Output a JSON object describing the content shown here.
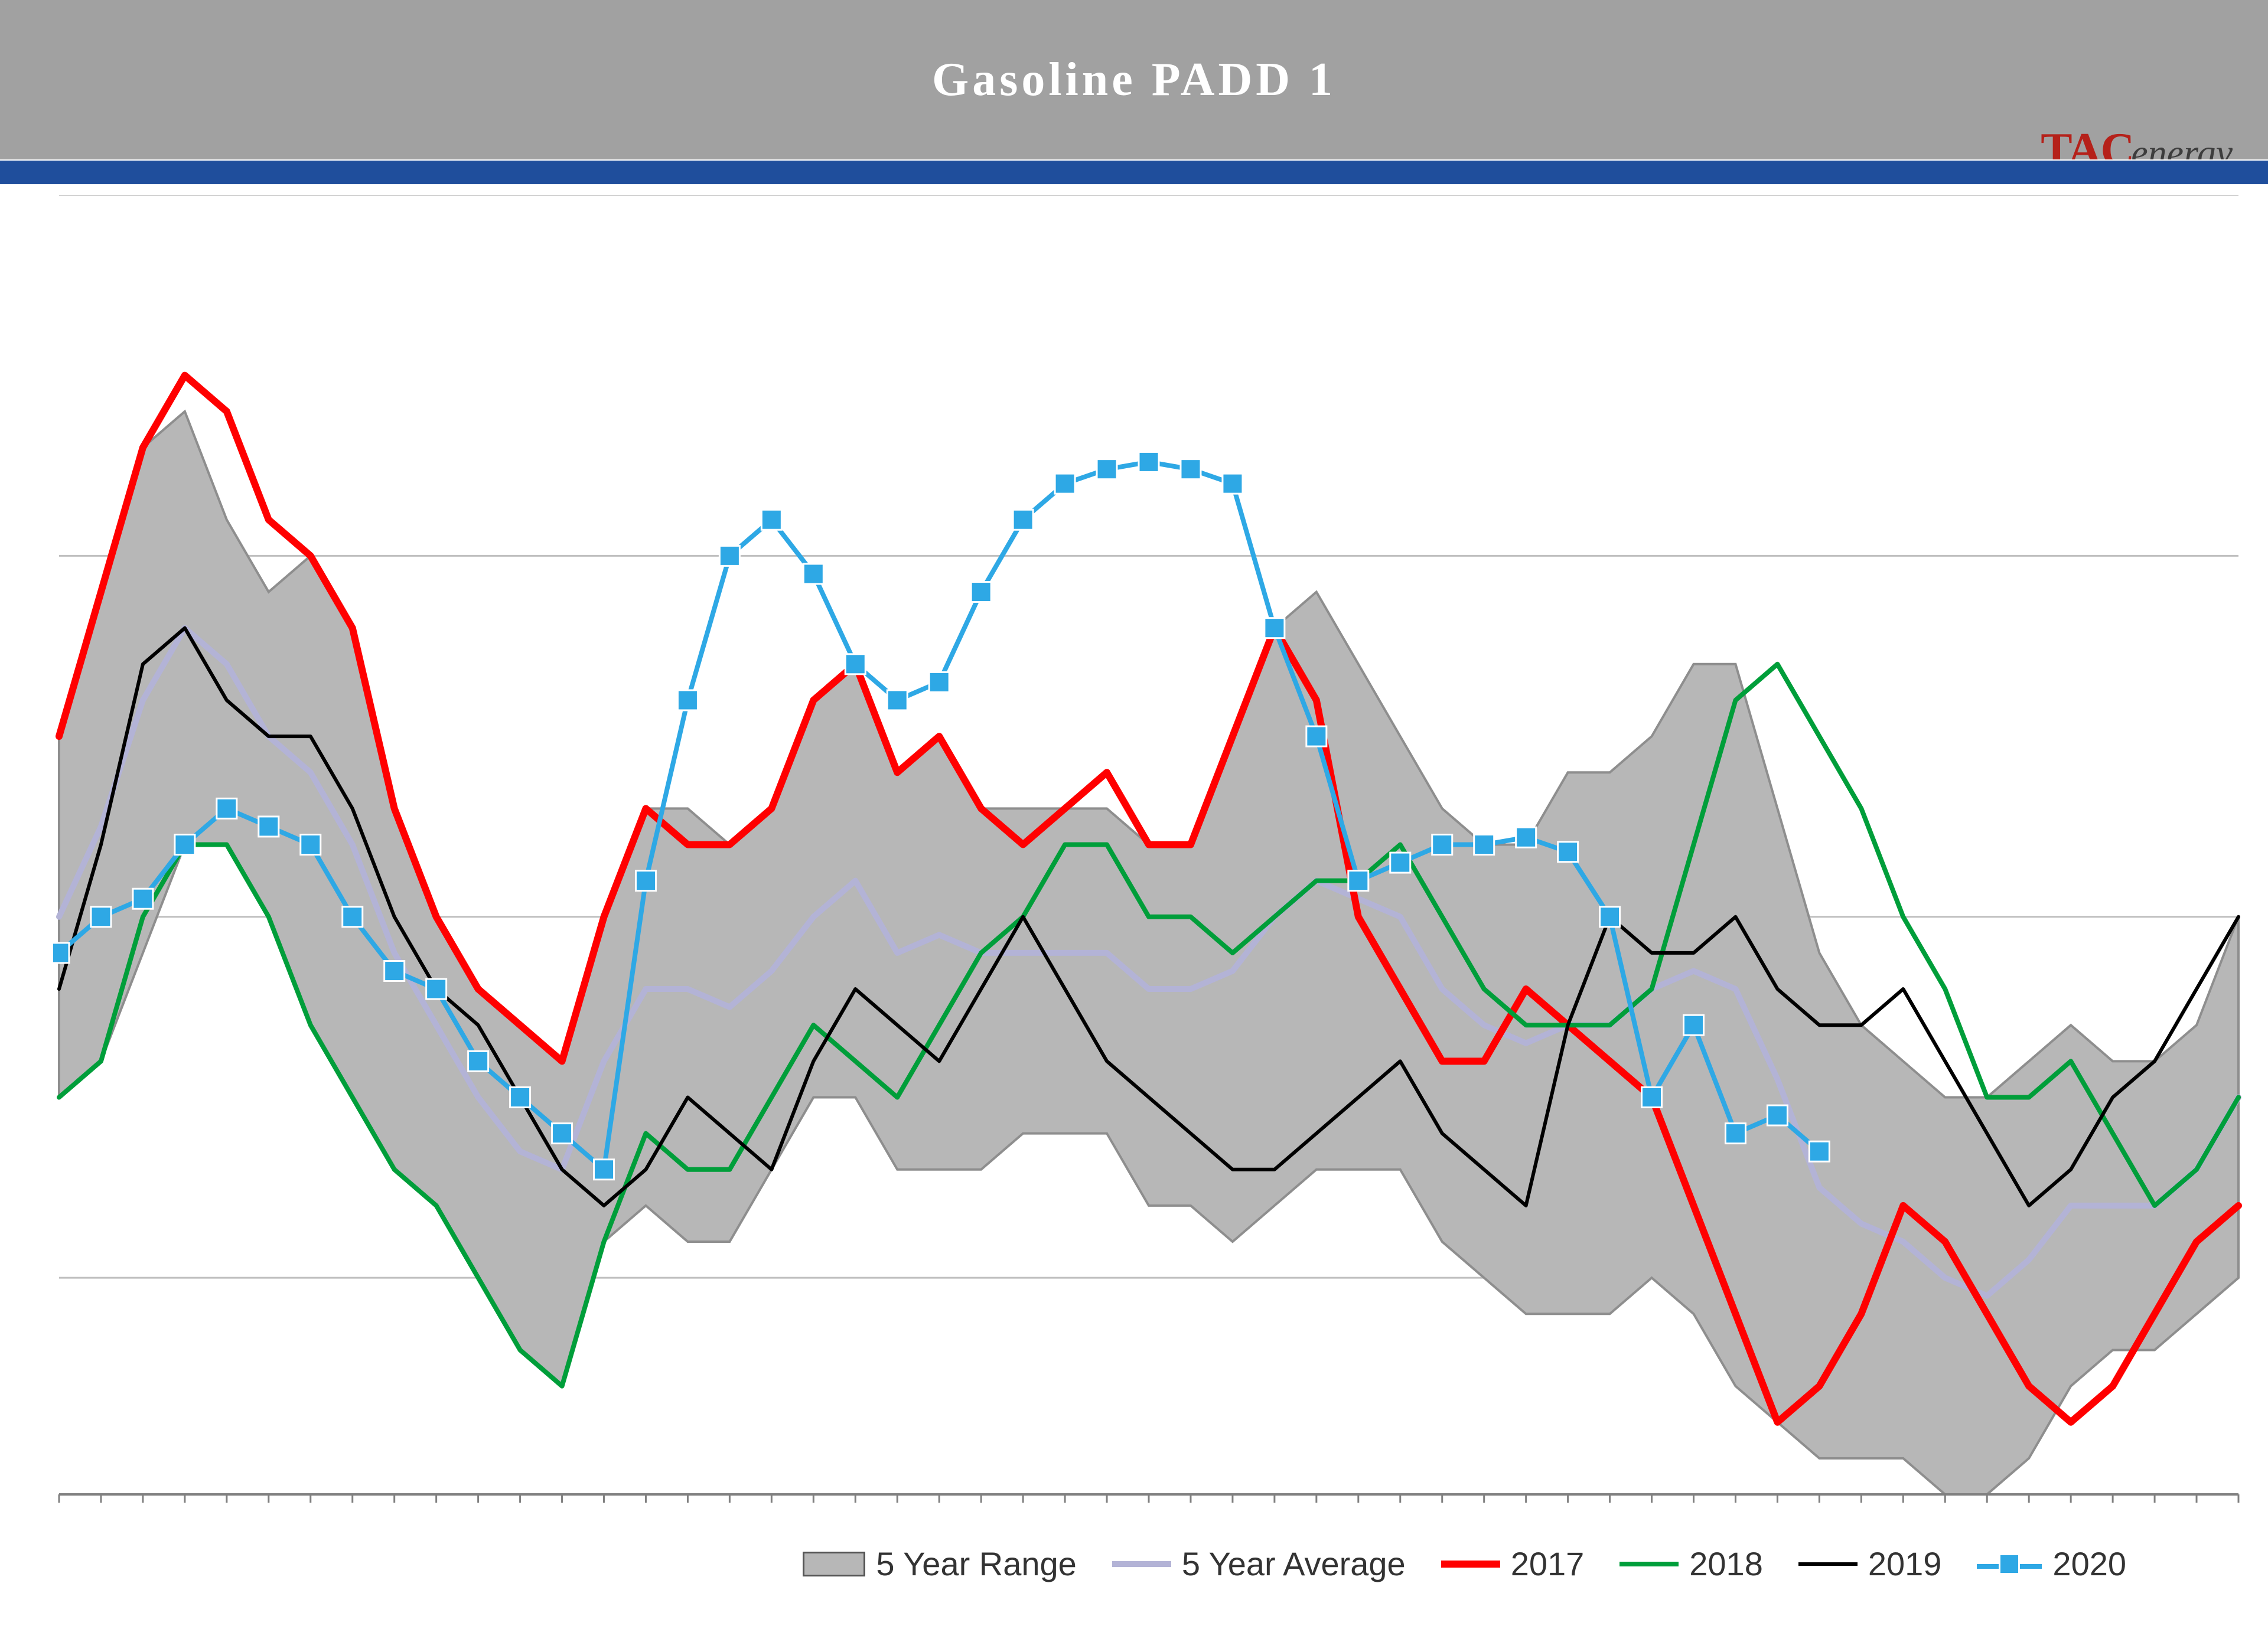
{
  "title": "Gasoline  PADD  1",
  "title_color": "#ffffff",
  "title_bar_color": "#a1a1a1",
  "blue_band_color": "#1f4e9c",
  "logo": {
    "tac": "TAC",
    "energy": "energy",
    "tac_color": "#b5211a",
    "energy_color": "#3d3d3d"
  },
  "chart": {
    "type": "line",
    "n_points": 53,
    "ylim": [
      44,
      80
    ],
    "gridlines_y": [
      50,
      60,
      70,
      80
    ],
    "background_color": "#ffffff",
    "grid_color": "#bfbfbf",
    "axis_color": "#808080",
    "range_fill": "#b7b7b7",
    "range_border": "#8e8e8e",
    "series": {
      "range_high": {
        "label": "5 Year Range",
        "color_fill": "#b7b7b7",
        "color_edge": "#8e8e8e",
        "values": [
          65,
          69,
          73,
          74,
          71,
          69,
          70,
          68,
          63,
          60,
          58,
          57,
          56,
          60,
          63,
          63,
          62,
          63,
          66,
          67,
          64,
          65,
          63,
          63,
          63,
          63,
          62,
          62,
          65,
          68,
          69,
          67,
          65,
          63,
          62,
          62,
          64,
          64,
          65,
          67,
          67,
          63,
          59,
          57,
          56,
          55,
          55,
          56,
          57,
          56,
          56,
          57,
          60
        ]
      },
      "range_low": {
        "values": [
          55,
          56,
          59,
          62,
          62,
          60,
          57,
          55,
          53,
          52,
          50,
          48,
          47,
          51,
          52,
          51,
          51,
          53,
          55,
          55,
          53,
          53,
          53,
          54,
          54,
          54,
          52,
          52,
          51,
          52,
          53,
          53,
          53,
          51,
          50,
          49,
          49,
          49,
          50,
          49,
          47,
          46,
          45,
          45,
          45,
          44,
          44,
          45,
          47,
          48,
          48,
          49,
          50
        ]
      },
      "avg": {
        "label": "5 Year Average",
        "color": "#b3b3d6",
        "line_width": 10,
        "values": [
          60,
          62.5,
          66,
          68,
          67,
          65,
          64,
          62,
          59,
          57,
          55,
          53.5,
          53,
          56,
          58,
          58,
          57.5,
          58.5,
          60,
          61,
          59,
          59.5,
          59,
          59,
          59,
          59,
          58,
          58,
          58.5,
          60,
          61,
          60.5,
          60,
          58,
          57,
          56.5,
          57,
          57,
          58,
          58.5,
          58,
          55.5,
          52.5,
          51.5,
          51,
          50,
          49.5,
          50.5,
          52,
          52,
          52,
          53,
          55
        ]
      },
      "y2017": {
        "label": "2017",
        "color": "#ff0000",
        "line_width": 12,
        "values": [
          65,
          69,
          73,
          75,
          74,
          71,
          70,
          68,
          63,
          60,
          58,
          57,
          56,
          60,
          63,
          62,
          62,
          63,
          66,
          67,
          64,
          65,
          63,
          62,
          63,
          64,
          62,
          62,
          65,
          68,
          66,
          60,
          58,
          56,
          56,
          58,
          57,
          56,
          55,
          52,
          49,
          46,
          47,
          49,
          52,
          51,
          49,
          47,
          46,
          47,
          49,
          51,
          52
        ]
      },
      "y2018": {
        "label": "2018",
        "color": "#009e3a",
        "line_width": 8,
        "values": [
          55,
          56,
          60,
          62,
          62,
          60,
          57,
          55,
          53,
          52,
          50,
          48,
          47,
          51,
          54,
          53,
          53,
          55,
          57,
          56,
          55,
          57,
          59,
          60,
          62,
          62,
          60,
          60,
          59,
          60,
          61,
          61,
          62,
          60,
          58,
          57,
          57,
          57,
          58,
          62,
          66,
          67,
          65,
          63,
          60,
          58,
          55,
          55,
          56,
          54,
          52,
          53,
          55
        ]
      },
      "y2019": {
        "label": "2019",
        "color": "#000000",
        "line_width": 6,
        "values": [
          58,
          62,
          67,
          68,
          66,
          65,
          65,
          63,
          60,
          58,
          57,
          55,
          53,
          52,
          53,
          55,
          54,
          53,
          56,
          58,
          57,
          56,
          58,
          60,
          58,
          56,
          55,
          54,
          53,
          53,
          54,
          55,
          56,
          54,
          53,
          52,
          57,
          60,
          59,
          59,
          60,
          58,
          57,
          57,
          58,
          56,
          54,
          52,
          53,
          55,
          56,
          58,
          60
        ]
      },
      "y2020": {
        "label": "2020",
        "color": "#2ea8e5",
        "marker": "square",
        "marker_size": 34,
        "line_width": 8,
        "values": [
          59,
          60,
          60.5,
          62,
          63,
          62.5,
          62,
          60,
          58.5,
          58,
          56,
          55,
          54,
          53,
          61,
          66,
          70,
          71,
          69.5,
          67,
          66,
          66.5,
          69,
          71,
          72,
          72.4,
          72.6,
          72.4,
          72,
          68,
          65,
          61,
          61.5,
          62,
          62,
          62.2,
          61.8,
          60,
          55,
          57,
          54,
          54.5,
          53.5
        ]
      }
    },
    "legend_order": [
      "range_high",
      "avg",
      "y2017",
      "y2018",
      "y2019",
      "y2020"
    ],
    "legend_fontsize": 56
  }
}
